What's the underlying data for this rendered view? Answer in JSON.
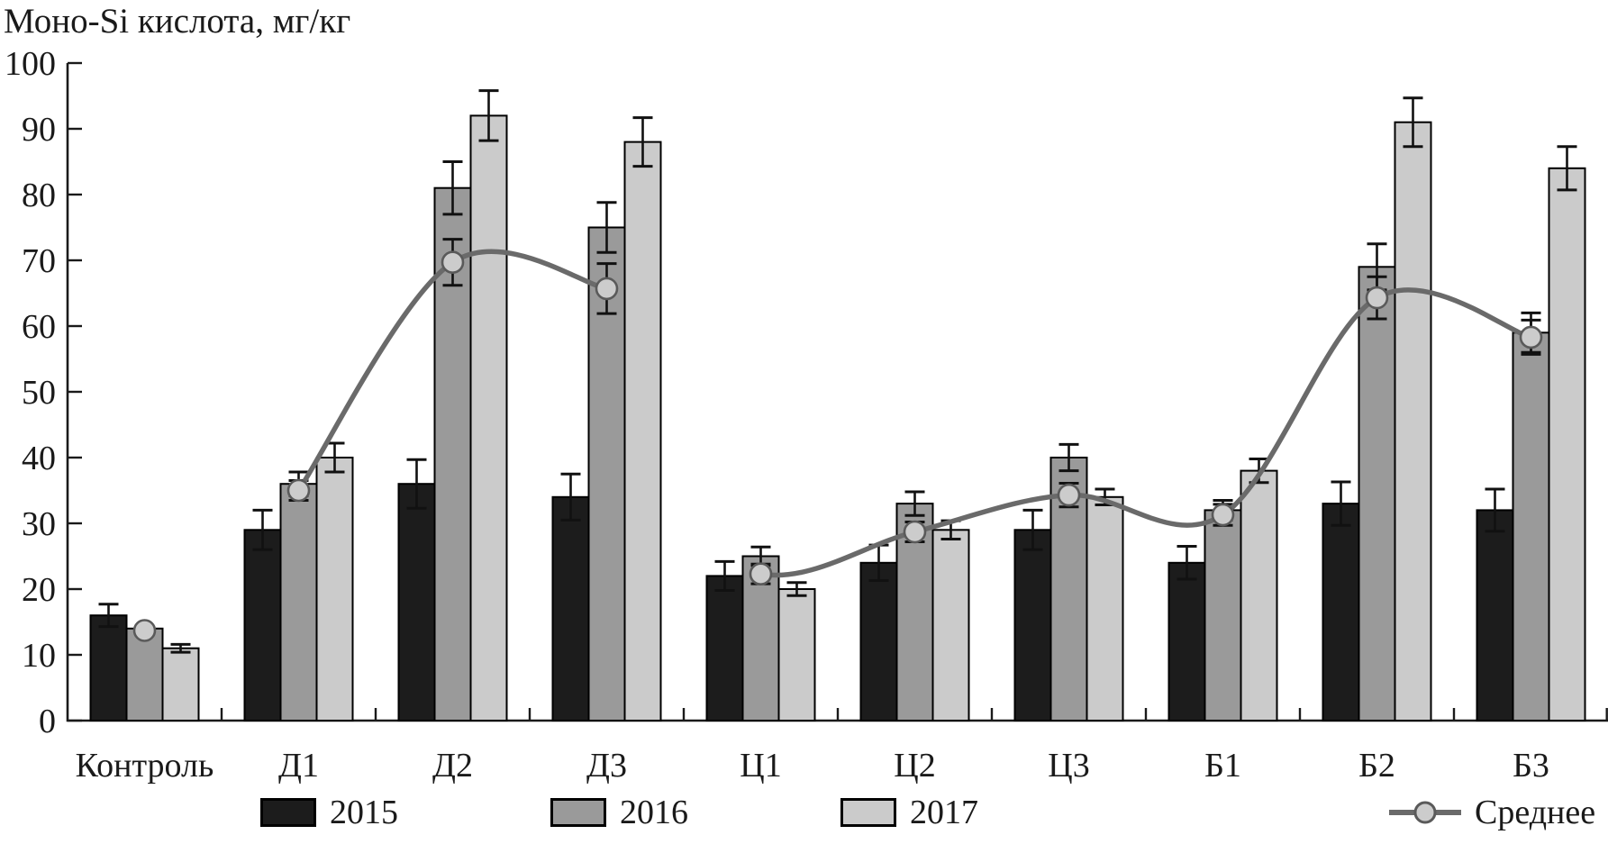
{
  "chart_data": {
    "type": "bar",
    "title": "Моно-Si кислота, мг/кг",
    "categories": [
      "Контроль",
      "Д1",
      "Д2",
      "Д3",
      "Ц1",
      "Ц2",
      "Ц3",
      "Б1",
      "Б2",
      "Б3"
    ],
    "ylim": [
      0,
      100
    ],
    "y_ticks": [
      0,
      10,
      20,
      30,
      40,
      50,
      60,
      70,
      80,
      90,
      100
    ],
    "grid": false,
    "legend_position": "bottom",
    "axis_color": "#1a1a1a",
    "series": [
      {
        "name": "2015",
        "color": "#1c1c1c",
        "values": [
          16,
          29,
          36,
          34,
          22,
          24,
          29,
          24,
          33,
          32
        ],
        "errors": [
          1.7,
          3,
          3.7,
          3.5,
          2.2,
          2.7,
          3,
          2.5,
          3.3,
          3.2
        ]
      },
      {
        "name": "2016",
        "color": "#9a9a9a",
        "values": [
          14,
          36,
          81,
          75,
          25,
          33,
          40,
          32,
          69,
          59
        ],
        "errors": [
          0,
          1.8,
          4,
          3.8,
          1.4,
          1.8,
          2,
          1.5,
          3.5,
          3
        ]
      },
      {
        "name": "2017",
        "color": "#cbcbcb",
        "values": [
          11,
          40,
          92,
          88,
          20,
          29,
          34,
          38,
          91,
          84
        ],
        "errors": [
          0.6,
          2.2,
          3.8,
          3.7,
          1,
          1.4,
          1.2,
          1.8,
          3.7,
          3.3
        ]
      }
    ],
    "line_series": {
      "name": "Среднее",
      "color": "#6a6a6a",
      "marker_fill": "#cccccc",
      "marker_stroke": "#5a5a5a",
      "values": [
        13.7,
        35.0,
        69.7,
        65.7,
        22.3,
        28.7,
        34.3,
        31.3,
        64.3,
        58.3
      ],
      "errors": [
        0,
        1.5,
        3.5,
        3.8,
        1.5,
        1.5,
        1.8,
        1.6,
        3.2,
        2.6
      ],
      "connected_segments": [
        [
          1,
          2,
          3
        ],
        [
          4,
          5,
          6,
          7,
          8,
          9
        ]
      ]
    }
  }
}
